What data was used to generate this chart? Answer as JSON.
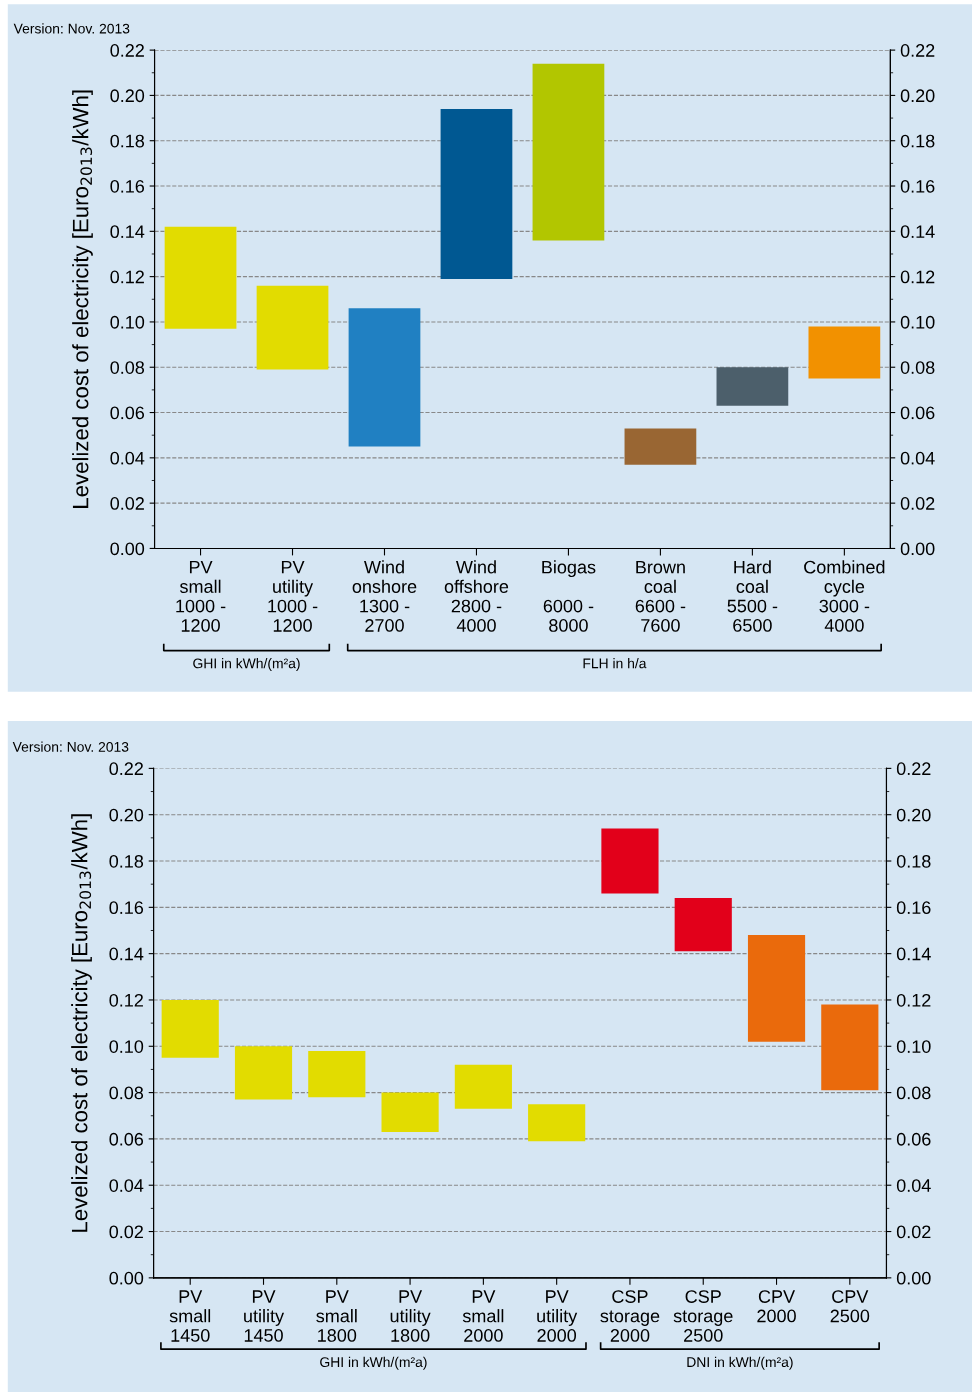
{
  "chart_data": [
    {
      "type": "bar",
      "ylabel": "Levelized cost of electricity [Euro$_{2013}$/kWh]",
      "categories": [
        "PV\nsmall\n1000 -\n1200",
        "PV\nutility\n1000 -\n1200",
        "Wind\nonshore\n1300 -\n2700",
        "Wind\noffshore\n2800 -\n4000",
        "Biogas\n\n6000 -\n8000",
        "Brown\ncoal\n6600 -\n7600",
        "Hard\ncoal\n5500 -\n6500",
        "Combined\ncycle\n3000 -\n4000"
      ],
      "base": [
        0.097,
        0.079,
        0.045,
        0.119,
        0.136,
        0.037,
        0.063,
        0.075
      ],
      "values": [
        0.045,
        0.037,
        0.061,
        0.075,
        0.078,
        0.016,
        0.017,
        0.023
      ],
      "colors": [
        "#e2dc00",
        "#e2dc00",
        "#2080c2",
        "#005892",
        "#b2c600",
        "#996633",
        "#4c5f6b",
        "#f29100"
      ],
      "ylim": [
        0,
        0.22
      ],
      "yticks": [
        {
          "value": 0,
          "label": "0.00"
        },
        {
          "value": 0.02,
          "label": "0.02"
        },
        {
          "value": 0.04,
          "label": "0.04"
        },
        {
          "value": 0.06,
          "label": "0.06"
        },
        {
          "value": 0.08,
          "label": "0.08"
        },
        {
          "value": 0.1,
          "label": "0.10"
        },
        {
          "value": 0.12,
          "label": "0.12"
        },
        {
          "value": 0.14,
          "label": "0.14"
        },
        {
          "value": 0.16,
          "label": "0.16"
        },
        {
          "value": 0.18,
          "label": "0.18"
        },
        {
          "value": 0.2,
          "label": "0.20"
        },
        {
          "value": 0.22,
          "label": "0.22"
        }
      ],
      "y2lim": [
        0,
        0.22
      ],
      "y2ticks": [
        {
          "value": 0,
          "label": "0.00"
        },
        {
          "value": 0.02,
          "label": "0.02"
        },
        {
          "value": 0.04,
          "label": "0.04"
        },
        {
          "value": 0.06,
          "label": "0.06"
        },
        {
          "value": 0.08,
          "label": "0.08"
        },
        {
          "value": 0.1,
          "label": "0.10"
        },
        {
          "value": 0.12,
          "label": "0.12"
        },
        {
          "value": 0.14,
          "label": "0.14"
        },
        {
          "value": 0.16,
          "label": "0.16"
        },
        {
          "value": 0.18,
          "label": "0.18"
        },
        {
          "value": 0.2,
          "label": "0.20"
        },
        {
          "value": 0.22,
          "label": "0.22"
        }
      ],
      "grid": "y",
      "annotations": [
        "Version: Nov. 2013",
        "GHI in kWh/(m²a)",
        "FLH in h/a"
      ]
    },
    {
      "type": "bar",
      "ylabel": "Levelized cost of electricity [Euro$_{2013}$/kWh]",
      "categories": [
        "PV\nsmall\n1450",
        "PV\nutility\n1450",
        "PV\nsmall\n1800",
        "PV\nutility\n1800",
        "PV\nsmall\n2000",
        "PV\nutility\n2000",
        "CSP\nstorage\n2000",
        "CSP\nstorage\n2500",
        "CPV\n2000",
        "CPV\n2500"
      ],
      "base": [
        0.095,
        0.077,
        0.078,
        0.063,
        0.073,
        0.059,
        0.166,
        0.141,
        0.102,
        0.081
      ],
      "values": [
        0.025,
        0.023,
        0.02,
        0.017,
        0.019,
        0.016,
        0.028,
        0.023,
        0.046,
        0.037
      ],
      "colors": [
        "#e2dc00",
        "#e2dc00",
        "#e2dc00",
        "#e2dc00",
        "#e2dc00",
        "#e2dc00",
        "#e2001a",
        "#e2001a",
        "#ea6a0c",
        "#ea6a0c"
      ],
      "ylim": [
        0,
        0.22
      ],
      "yticks": [
        {
          "value": 0,
          "label": "0.00"
        },
        {
          "value": 0.02,
          "label": "0.02"
        },
        {
          "value": 0.04,
          "label": "0.04"
        },
        {
          "value": 0.06,
          "label": "0.06"
        },
        {
          "value": 0.08,
          "label": "0.08"
        },
        {
          "value": 0.1,
          "label": "0.10"
        },
        {
          "value": 0.12,
          "label": "0.12"
        },
        {
          "value": 0.14,
          "label": "0.14"
        },
        {
          "value": 0.16,
          "label": "0.16"
        },
        {
          "value": 0.18,
          "label": "0.18"
        },
        {
          "value": 0.2,
          "label": "0.20"
        },
        {
          "value": 0.22,
          "label": "0.22"
        }
      ],
      "y2lim": [
        0,
        0.22
      ],
      "y2ticks": [
        {
          "value": 0,
          "label": "0.00"
        },
        {
          "value": 0.02,
          "label": "0.02"
        },
        {
          "value": 0.04,
          "label": "0.04"
        },
        {
          "value": 0.06,
          "label": "0.06"
        },
        {
          "value": 0.08,
          "label": "0.08"
        },
        {
          "value": 0.1,
          "label": "0.10"
        },
        {
          "value": 0.12,
          "label": "0.12"
        },
        {
          "value": 0.14,
          "label": "0.14"
        },
        {
          "value": 0.16,
          "label": "0.16"
        },
        {
          "value": 0.18,
          "label": "0.18"
        },
        {
          "value": 0.2,
          "label": "0.20"
        },
        {
          "value": 0.22,
          "label": "0.22"
        }
      ],
      "grid": "y",
      "annotations": [
        "Version: Nov. 2013",
        "GHI in kWh/(m²a)",
        "DNI in kWh/(m²a)"
      ]
    }
  ]
}
